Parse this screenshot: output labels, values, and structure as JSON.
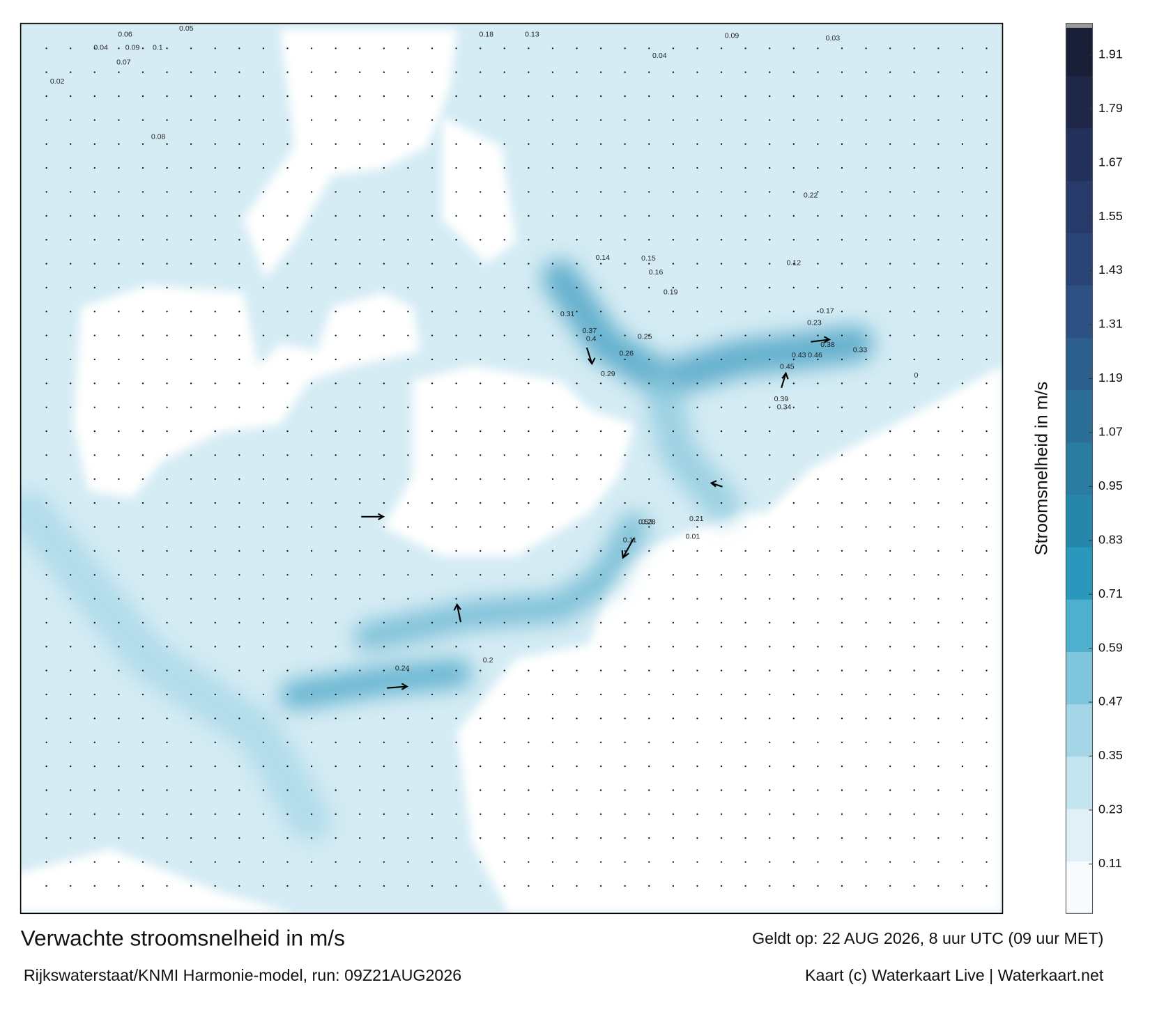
{
  "header": {
    "title": "Verwachte stroomsnelheid in m/s",
    "subtitle": "Rijkswaterstaat/KNMI Harmonie-model, run: 09Z21AUG2026"
  },
  "footer": {
    "valid": "Geldt op: 22 AUG 2026, 8 uur UTC (09 uur MET)",
    "credit": "Kaart (c) Waterkaart Live | Waterkaart.net"
  },
  "colorbar": {
    "label": "Stroomsnelheid in m/s",
    "lim": [
      0,
      1.98
    ],
    "ticks": [
      0.11,
      0.23,
      0.35,
      0.47,
      0.59,
      0.71,
      0.83,
      0.95,
      1.07,
      1.19,
      1.31,
      1.43,
      1.55,
      1.67,
      1.79,
      1.91
    ],
    "colors": [
      "#f7fbfd",
      "#e0f0f6",
      "#c4e4ef",
      "#a5d6e7",
      "#7fc5db",
      "#4fb0cd",
      "#2a97bc",
      "#2787ab",
      "#2a7ca0",
      "#2c6f96",
      "#2d5f8d",
      "#2e5184",
      "#2b4476",
      "#283a69",
      "#23305a",
      "#1e2748",
      "#1a1f38"
    ]
  },
  "map": {
    "labels": [
      0.06,
      0.05,
      0.04,
      0.09,
      0.02,
      0.07,
      0.08,
      0.1,
      0.18,
      0.13,
      0.09,
      0.04,
      0.12,
      0.17,
      0.16,
      0.19,
      0.14,
      0.15,
      0.22,
      0.31,
      0.37,
      0.4,
      0.25,
      0.26,
      0.29,
      0.38,
      0.33,
      0.46,
      0.43,
      0.45,
      0.39,
      0.34,
      0.28,
      0.21,
      0.53,
      0.24,
      0.23,
      0.11,
      0.01,
      0,
      0.03,
      0.2
    ]
  }
}
